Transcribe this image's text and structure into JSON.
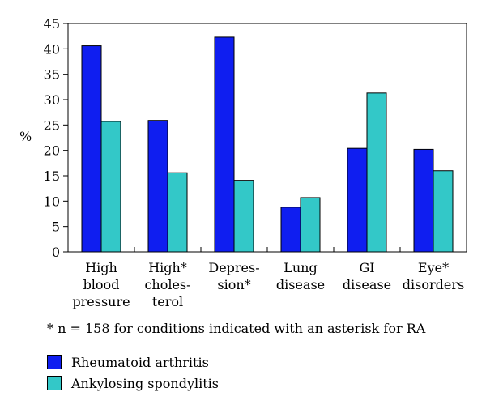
{
  "chart_data": {
    "type": "bar",
    "ylabel": "%",
    "ylim": [
      0,
      45
    ],
    "yticks": [
      0,
      5,
      10,
      15,
      20,
      25,
      30,
      35,
      40,
      45
    ],
    "grid": false,
    "categories": [
      [
        "High",
        "blood",
        "pressure"
      ],
      [
        "High*",
        "choles-",
        "terol"
      ],
      [
        "Depres-",
        "sion*"
      ],
      [
        "Lung",
        "disease"
      ],
      [
        "GI",
        "disease"
      ],
      [
        "Eye*",
        "disorders"
      ]
    ],
    "series": [
      {
        "name": "Rheumatoid arthritis",
        "color": "#0f1ef0",
        "values": [
          40.6,
          25.9,
          42.3,
          8.8,
          20.4,
          20.2
        ]
      },
      {
        "name": "Ankylosing spondylitis",
        "color": "#33c8c8",
        "values": [
          25.7,
          15.6,
          14.1,
          10.7,
          31.3,
          16.0
        ]
      }
    ]
  },
  "footnote": "* n = 158 for conditions indicated with an asterisk for RA"
}
